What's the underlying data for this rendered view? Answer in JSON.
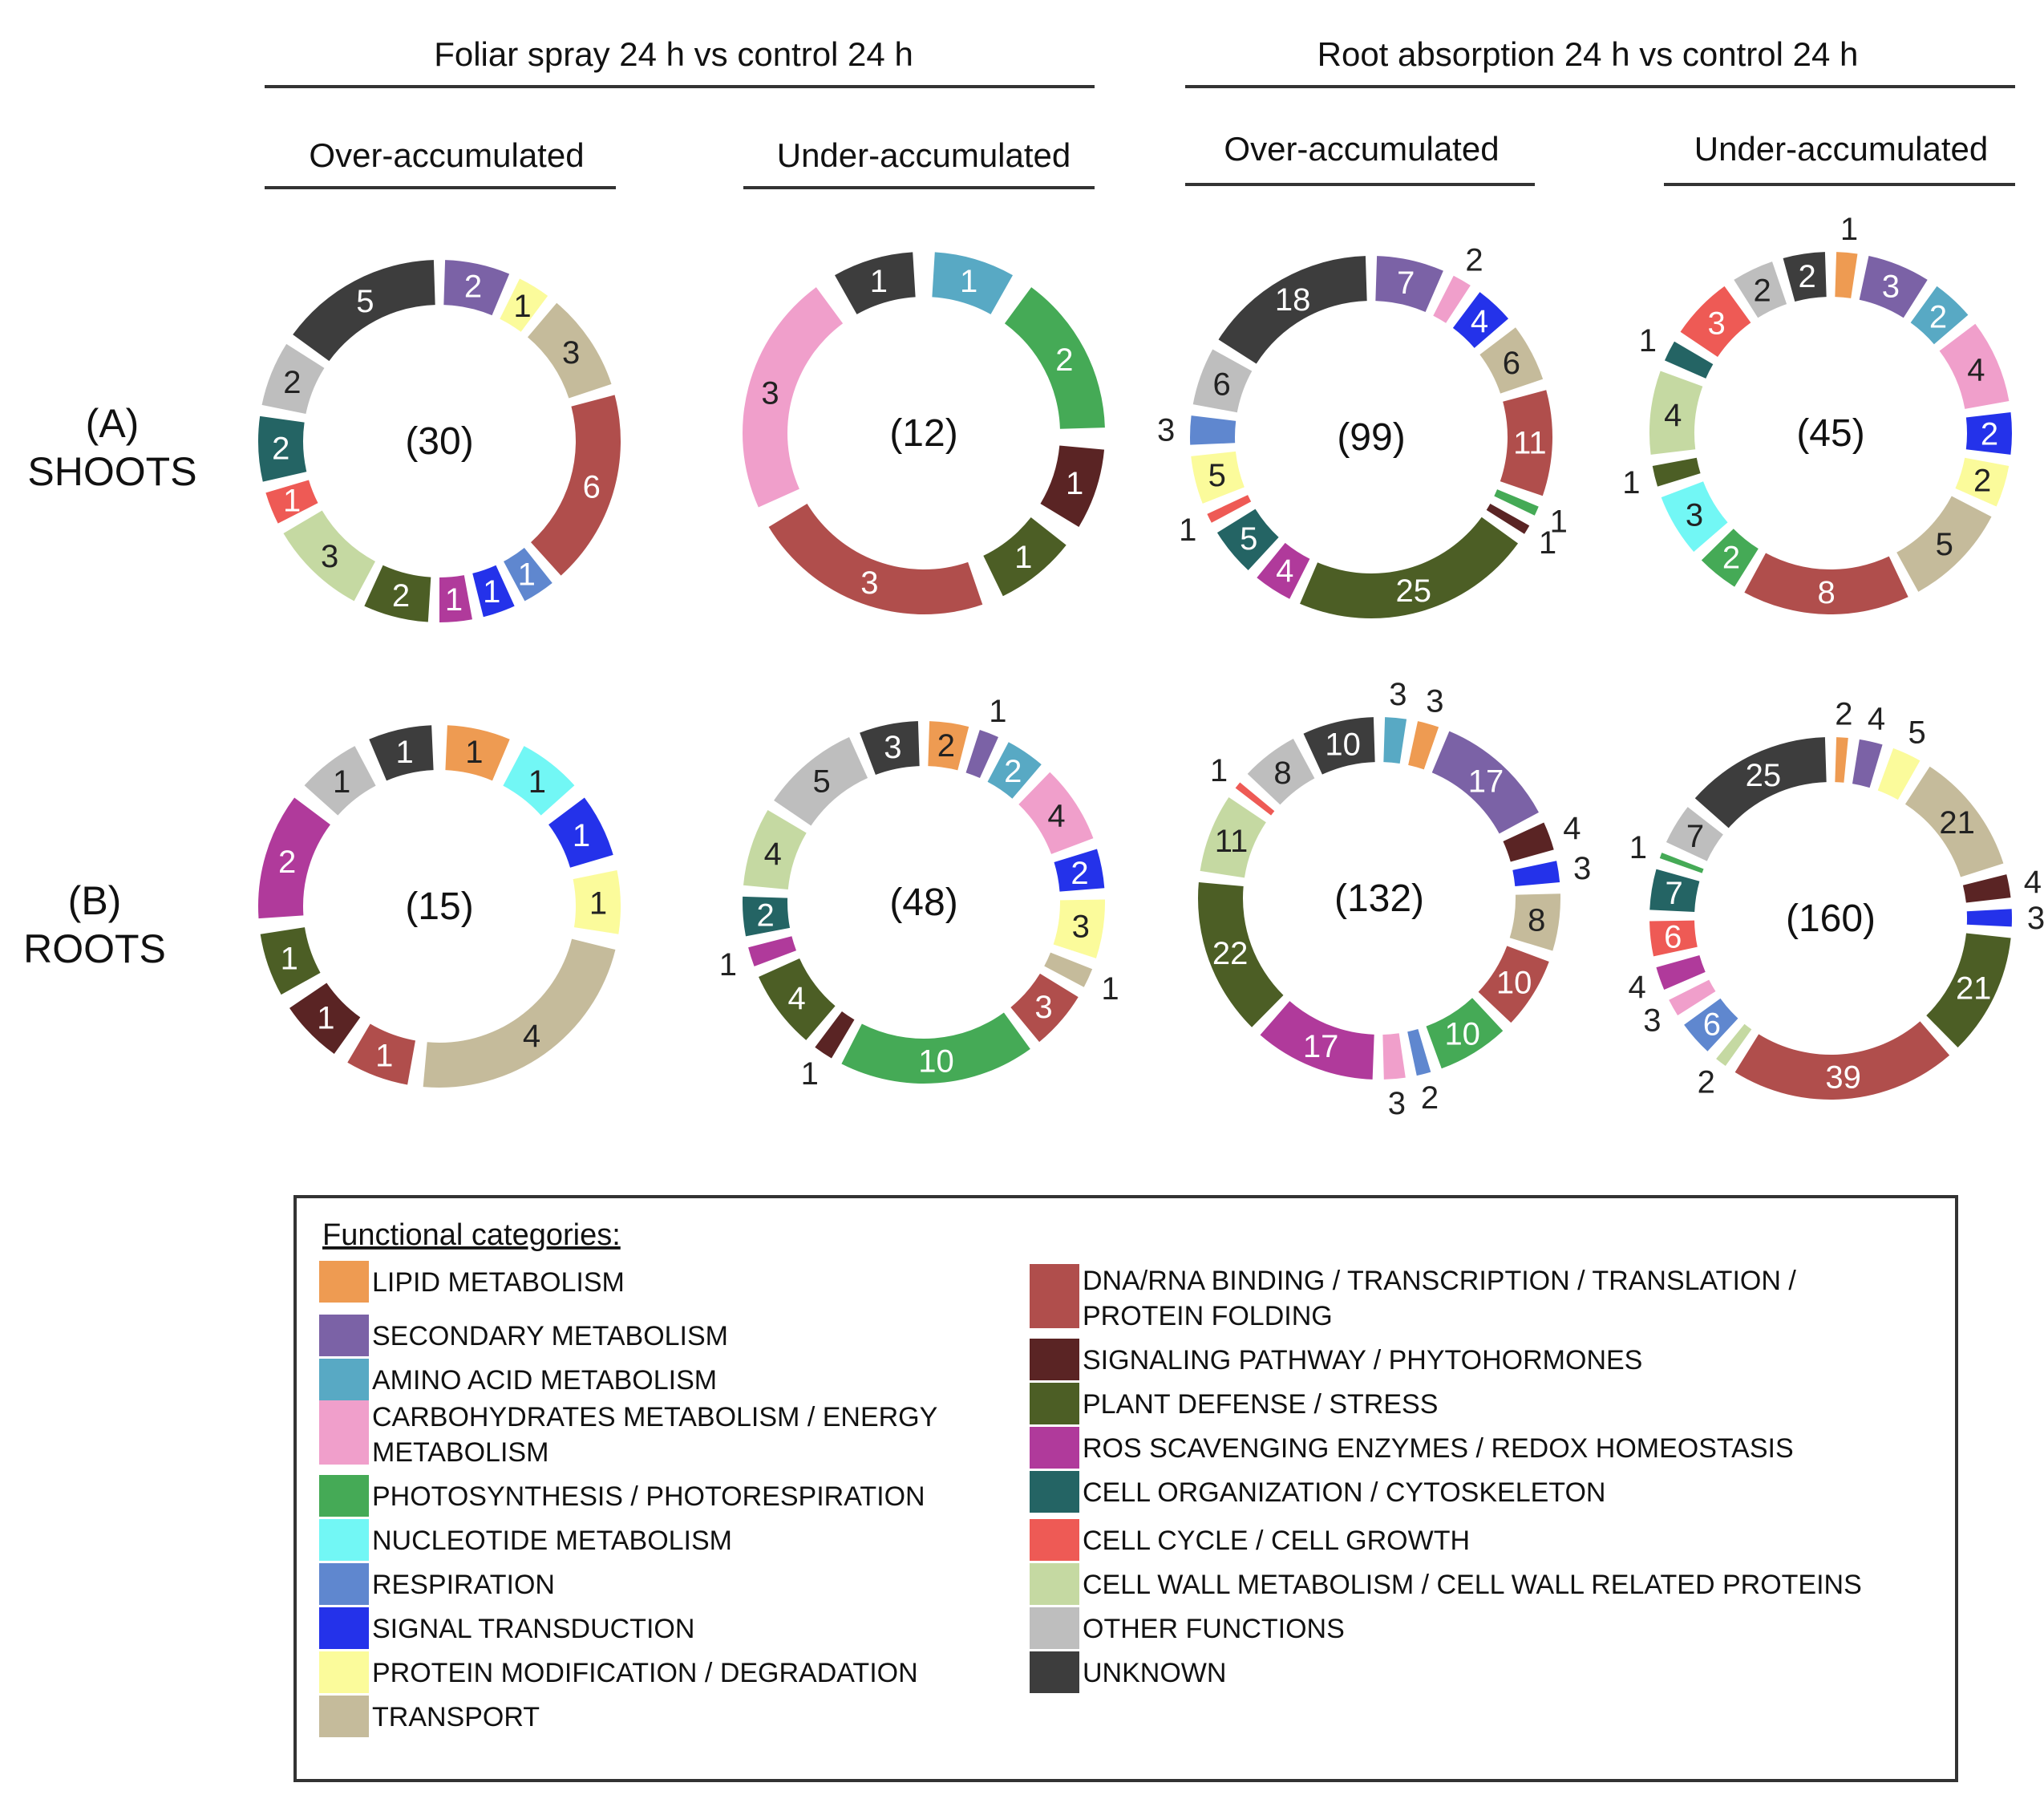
{
  "headers": {
    "foliar": "Foliar spray 24 h vs control 24 h",
    "root": "Root absorption 24 h vs control 24 h",
    "over": "Over-accumulated",
    "under": "Under-accumulated"
  },
  "rows": {
    "a_letter": "(A)",
    "a_name": "SHOOTS",
    "b_letter": "(B)",
    "b_name": "ROOTS"
  },
  "legend": {
    "title": "Functional categories:",
    "colon": ":",
    "items": [
      {
        "name": "LIPID METABOLISM",
        "lines": [
          "LIPID METABOLISM"
        ],
        "color": "#ee9b52"
      },
      {
        "name": "SECONDARY METABOLISM",
        "lines": [
          "SECONDARY  METABOLISM"
        ],
        "color": "#7b62a6"
      },
      {
        "name": "AMINO ACID METABOLISM",
        "lines": [
          "AMINO ACID METABOLISM"
        ],
        "color": "#58a9c4"
      },
      {
        "name": "CARBOHYDRATES METABOLISM / ENERGY METABOLISM",
        "lines": [
          "CARBOHYDRATES METABOLISM / ENERGY",
          "METABOLISM"
        ],
        "color": "#f09fcb"
      },
      {
        "name": "PHOTOSYNTHESIS / PHOTORESPIRATION",
        "lines": [
          "PHOTOSYNTHESIS / PHOTORESPIRATION"
        ],
        "color": "#45aa56"
      },
      {
        "name": "NUCLEOTIDE METABOLISM",
        "lines": [
          "NUCLEOTIDE METABOLISM"
        ],
        "color": "#72f7f5"
      },
      {
        "name": "RESPIRATION",
        "lines": [
          "RESPIRATION"
        ],
        "color": "#5f87cf"
      },
      {
        "name": "SIGNAL TRANSDUCTION",
        "lines": [
          "SIGNAL TRANSDUCTION"
        ],
        "color": "#2432ea"
      },
      {
        "name": "PROTEIN MODIFICATION / DEGRADATION",
        "lines": [
          "PROTEIN MODIFICATION / DEGRADATION"
        ],
        "color": "#fbfb9b"
      },
      {
        "name": "TRANSPORT",
        "lines": [
          "TRANSPORT"
        ],
        "color": "#c5bb9b"
      },
      {
        "name": "DNA/RNA BINDING / TRANSCRIPTION / TRANSLATION / PROTEIN FOLDING",
        "lines": [
          "DNA/RNA BINDING / TRANSCRIPTION / TRANSLATION /",
          "PROTEIN FOLDING"
        ],
        "color": "#b04e4c"
      },
      {
        "name": "SIGNALING PATHWAY / PHYTOHORMONES",
        "lines": [
          "SIGNALING PATHWAY / PHYTOHORMONES"
        ],
        "color": "#5a2424"
      },
      {
        "name": "PLANT DEFENSE / STRESS",
        "lines": [
          "PLANT DEFENSE / STRESS"
        ],
        "color": "#4c5e25"
      },
      {
        "name": "ROS SCAVENGING ENZYMES / REDOX HOMEOSTASIS",
        "lines": [
          "ROS SCAVENGING ENZYMES  / REDOX HOMEOSTASIS"
        ],
        "color": "#b03a9b"
      },
      {
        "name": "CELL ORGANIZATION / CYTOSKELETON",
        "lines": [
          "CELL ORGANIZATION / CYTOSKELETON"
        ],
        "color": "#246464"
      },
      {
        "name": "CELL CYCLE / CELL GROWTH",
        "lines": [
          "CELL CYCLE / CELL GROWTH"
        ],
        "color": "#ee5a55"
      },
      {
        "name": "CELL WALL METABOLISM / CELL WALL RELATED PROTEINS",
        "lines": [
          "CELL WALL METABOLISM / CELL WALL RELATED PROTEINS"
        ],
        "color": "#c5d9a2"
      },
      {
        "name": "OTHER FUNCTIONS",
        "lines": [
          "OTHER FUNCTIONS"
        ],
        "color": "#bebebe"
      },
      {
        "name": "UNKNOWN",
        "lines": [
          "UNKNOWN"
        ],
        "color": "#3d3d3d"
      }
    ]
  },
  "chart_data": [
    {
      "type": "pie",
      "title": "Shoots - Foliar spray - Over-accumulated",
      "total_label": "(30)",
      "slices": [
        {
          "category": "SECONDARY METABOLISM",
          "value": 2
        },
        {
          "category": "PROTEIN MODIFICATION / DEGRADATION",
          "value": 1
        },
        {
          "category": "TRANSPORT",
          "value": 3
        },
        {
          "category": "DNA/RNA BINDING / TRANSCRIPTION / TRANSLATION / PROTEIN FOLDING",
          "value": 6
        },
        {
          "category": "RESPIRATION",
          "value": 1
        },
        {
          "category": "SIGNAL TRANSDUCTION",
          "value": 1
        },
        {
          "category": "ROS SCAVENGING ENZYMES / REDOX HOMEOSTASIS",
          "value": 1
        },
        {
          "category": "PLANT DEFENSE / STRESS",
          "value": 2
        },
        {
          "category": "CELL WALL METABOLISM / CELL WALL RELATED PROTEINS",
          "value": 3
        },
        {
          "category": "CELL CYCLE / CELL GROWTH",
          "value": 1
        },
        {
          "category": "CELL ORGANIZATION / CYTOSKELETON",
          "value": 2
        },
        {
          "category": "OTHER FUNCTIONS",
          "value": 2
        },
        {
          "category": "UNKNOWN",
          "value": 5
        }
      ]
    },
    {
      "type": "pie",
      "title": "Shoots - Foliar spray - Under-accumulated",
      "total_label": "(12)",
      "slices": [
        {
          "category": "AMINO ACID METABOLISM",
          "value": 1
        },
        {
          "category": "PHOTOSYNTHESIS / PHOTORESPIRATION",
          "value": 2
        },
        {
          "category": "SIGNALING PATHWAY / PHYTOHORMONES",
          "value": 1
        },
        {
          "category": "PLANT DEFENSE / STRESS",
          "value": 1
        },
        {
          "category": "DNA/RNA BINDING / TRANSCRIPTION / TRANSLATION / PROTEIN FOLDING",
          "value": 3
        },
        {
          "category": "CARBOHYDRATES METABOLISM / ENERGY METABOLISM",
          "value": 3
        },
        {
          "category": "UNKNOWN",
          "value": 1
        }
      ]
    },
    {
      "type": "pie",
      "title": "Shoots - Root absorption - Over-accumulated",
      "total_label": "(99)",
      "slices": [
        {
          "category": "SECONDARY METABOLISM",
          "value": 7
        },
        {
          "category": "CARBOHYDRATES METABOLISM / ENERGY METABOLISM",
          "value": 2
        },
        {
          "category": "SIGNAL TRANSDUCTION",
          "value": 4
        },
        {
          "category": "TRANSPORT",
          "value": 6
        },
        {
          "category": "DNA/RNA BINDING / TRANSCRIPTION / TRANSLATION / PROTEIN FOLDING",
          "value": 11
        },
        {
          "category": "PHOTOSYNTHESIS / PHOTORESPIRATION",
          "value": 1
        },
        {
          "category": "SIGNALING PATHWAY / PHYTOHORMONES",
          "value": 1
        },
        {
          "category": "PLANT DEFENSE / STRESS",
          "value": 25
        },
        {
          "category": "ROS SCAVENGING ENZYMES / REDOX HOMEOSTASIS",
          "value": 4
        },
        {
          "category": "CELL ORGANIZATION / CYTOSKELETON",
          "value": 5
        },
        {
          "category": "CELL CYCLE / CELL GROWTH",
          "value": 1
        },
        {
          "category": "PROTEIN MODIFICATION / DEGRADATION",
          "value": 5
        },
        {
          "category": "RESPIRATION",
          "value": 3
        },
        {
          "category": "OTHER FUNCTIONS",
          "value": 6
        },
        {
          "category": "UNKNOWN",
          "value": 18
        }
      ]
    },
    {
      "type": "pie",
      "title": "Shoots - Root absorption - Under-accumulated",
      "total_label": "(45)",
      "slices": [
        {
          "category": "LIPID METABOLISM",
          "value": 1
        },
        {
          "category": "SECONDARY METABOLISM",
          "value": 3
        },
        {
          "category": "AMINO ACID METABOLISM",
          "value": 2
        },
        {
          "category": "CARBOHYDRATES METABOLISM / ENERGY METABOLISM",
          "value": 4
        },
        {
          "category": "SIGNAL TRANSDUCTION",
          "value": 2
        },
        {
          "category": "PROTEIN MODIFICATION / DEGRADATION",
          "value": 2
        },
        {
          "category": "TRANSPORT",
          "value": 5
        },
        {
          "category": "DNA/RNA BINDING / TRANSCRIPTION / TRANSLATION / PROTEIN FOLDING",
          "value": 8
        },
        {
          "category": "PHOTOSYNTHESIS / PHOTORESPIRATION",
          "value": 2
        },
        {
          "category": "NUCLEOTIDE METABOLISM",
          "value": 3
        },
        {
          "category": "PLANT DEFENSE / STRESS",
          "value": 1
        },
        {
          "category": "CELL WALL METABOLISM / CELL WALL RELATED PROTEINS",
          "value": 4
        },
        {
          "category": "CELL ORGANIZATION / CYTOSKELETON",
          "value": 1
        },
        {
          "category": "CELL CYCLE / CELL GROWTH",
          "value": 3
        },
        {
          "category": "OTHER FUNCTIONS",
          "value": 2
        },
        {
          "category": "UNKNOWN",
          "value": 2
        }
      ]
    },
    {
      "type": "pie",
      "title": "Roots - Foliar spray - Over-accumulated",
      "total_label": "(15)",
      "slices": [
        {
          "category": "LIPID METABOLISM",
          "value": 1
        },
        {
          "category": "NUCLEOTIDE METABOLISM",
          "value": 1
        },
        {
          "category": "SIGNAL TRANSDUCTION",
          "value": 1
        },
        {
          "category": "PROTEIN MODIFICATION / DEGRADATION",
          "value": 1
        },
        {
          "category": "TRANSPORT",
          "value": 4
        },
        {
          "category": "DNA/RNA BINDING / TRANSCRIPTION / TRANSLATION / PROTEIN FOLDING",
          "value": 1
        },
        {
          "category": "SIGNALING PATHWAY / PHYTOHORMONES",
          "value": 1
        },
        {
          "category": "PLANT DEFENSE / STRESS",
          "value": 1
        },
        {
          "category": "ROS SCAVENGING ENZYMES / REDOX HOMEOSTASIS",
          "value": 2
        },
        {
          "category": "OTHER FUNCTIONS",
          "value": 1
        },
        {
          "category": "UNKNOWN",
          "value": 1
        }
      ]
    },
    {
      "type": "pie",
      "title": "Roots - Foliar spray - Under-accumulated",
      "total_label": "(48)",
      "slices": [
        {
          "category": "LIPID METABOLISM",
          "value": 2
        },
        {
          "category": "SECONDARY METABOLISM",
          "value": 1
        },
        {
          "category": "AMINO ACID METABOLISM",
          "value": 2
        },
        {
          "category": "CARBOHYDRATES METABOLISM / ENERGY METABOLISM",
          "value": 4
        },
        {
          "category": "SIGNAL TRANSDUCTION",
          "value": 2
        },
        {
          "category": "PROTEIN MODIFICATION / DEGRADATION",
          "value": 3
        },
        {
          "category": "TRANSPORT",
          "value": 1
        },
        {
          "category": "DNA/RNA BINDING / TRANSCRIPTION / TRANSLATION / PROTEIN FOLDING",
          "value": 3
        },
        {
          "category": "PHOTOSYNTHESIS / PHOTORESPIRATION",
          "value": 10
        },
        {
          "category": "SIGNALING PATHWAY / PHYTOHORMONES",
          "value": 1
        },
        {
          "category": "PLANT DEFENSE / STRESS",
          "value": 4
        },
        {
          "category": "ROS SCAVENGING ENZYMES / REDOX HOMEOSTASIS",
          "value": 1
        },
        {
          "category": "CELL ORGANIZATION / CYTOSKELETON",
          "value": 2
        },
        {
          "category": "CELL WALL METABOLISM / CELL WALL RELATED PROTEINS",
          "value": 4
        },
        {
          "category": "OTHER FUNCTIONS",
          "value": 5
        },
        {
          "category": "UNKNOWN",
          "value": 3
        }
      ]
    },
    {
      "type": "pie",
      "title": "Roots - Root absorption - Over-accumulated",
      "total_label": "(132)",
      "slices": [
        {
          "category": "AMINO ACID METABOLISM",
          "value": 3
        },
        {
          "category": "LIPID METABOLISM",
          "value": 3
        },
        {
          "category": "SECONDARY METABOLISM",
          "value": 17
        },
        {
          "category": "SIGNALING PATHWAY / PHYTOHORMONES",
          "value": 4
        },
        {
          "category": "SIGNAL TRANSDUCTION",
          "value": 3
        },
        {
          "category": "TRANSPORT",
          "value": 8
        },
        {
          "category": "DNA/RNA BINDING / TRANSCRIPTION / TRANSLATION / PROTEIN FOLDING",
          "value": 10
        },
        {
          "category": "PHOTOSYNTHESIS / PHOTORESPIRATION",
          "value": 10
        },
        {
          "category": "RESPIRATION",
          "value": 2
        },
        {
          "category": "CARBOHYDRATES METABOLISM / ENERGY METABOLISM",
          "value": 3
        },
        {
          "category": "ROS SCAVENGING ENZYMES / REDOX HOMEOSTASIS",
          "value": 17
        },
        {
          "category": "PLANT DEFENSE / STRESS",
          "value": 22
        },
        {
          "category": "CELL WALL METABOLISM / CELL WALL RELATED PROTEINS",
          "value": 11
        },
        {
          "category": "CELL CYCLE / CELL GROWTH",
          "value": 1
        },
        {
          "category": "OTHER FUNCTIONS",
          "value": 8
        },
        {
          "category": "UNKNOWN",
          "value": 10
        }
      ]
    },
    {
      "type": "pie",
      "title": "Roots - Root absorption - Under-accumulated",
      "total_label": "(160)",
      "slices": [
        {
          "category": "LIPID METABOLISM",
          "value": 2
        },
        {
          "category": "SECONDARY METABOLISM",
          "value": 4
        },
        {
          "category": "PROTEIN MODIFICATION / DEGRADATION",
          "value": 5
        },
        {
          "category": "TRANSPORT",
          "value": 21
        },
        {
          "category": "SIGNALING PATHWAY / PHYTOHORMONES",
          "value": 4
        },
        {
          "category": "SIGNAL TRANSDUCTION",
          "value": 3
        },
        {
          "category": "PLANT DEFENSE / STRESS",
          "value": 21
        },
        {
          "category": "DNA/RNA BINDING / TRANSCRIPTION / TRANSLATION / PROTEIN FOLDING",
          "value": 39
        },
        {
          "category": "CELL WALL METABOLISM / CELL WALL RELATED PROTEINS",
          "value": 2
        },
        {
          "category": "RESPIRATION",
          "value": 6
        },
        {
          "category": "CARBOHYDRATES METABOLISM / ENERGY METABOLISM",
          "value": 3
        },
        {
          "category": "ROS SCAVENGING ENZYMES / REDOX HOMEOSTASIS",
          "value": 4
        },
        {
          "category": "CELL CYCLE / CELL GROWTH",
          "value": 6
        },
        {
          "category": "CELL ORGANIZATION / CYTOSKELETON",
          "value": 7
        },
        {
          "category": "PHOTOSYNTHESIS / PHOTORESPIRATION",
          "value": 1
        },
        {
          "category": "OTHER FUNCTIONS",
          "value": 7
        },
        {
          "category": "UNKNOWN",
          "value": 25
        }
      ]
    }
  ]
}
